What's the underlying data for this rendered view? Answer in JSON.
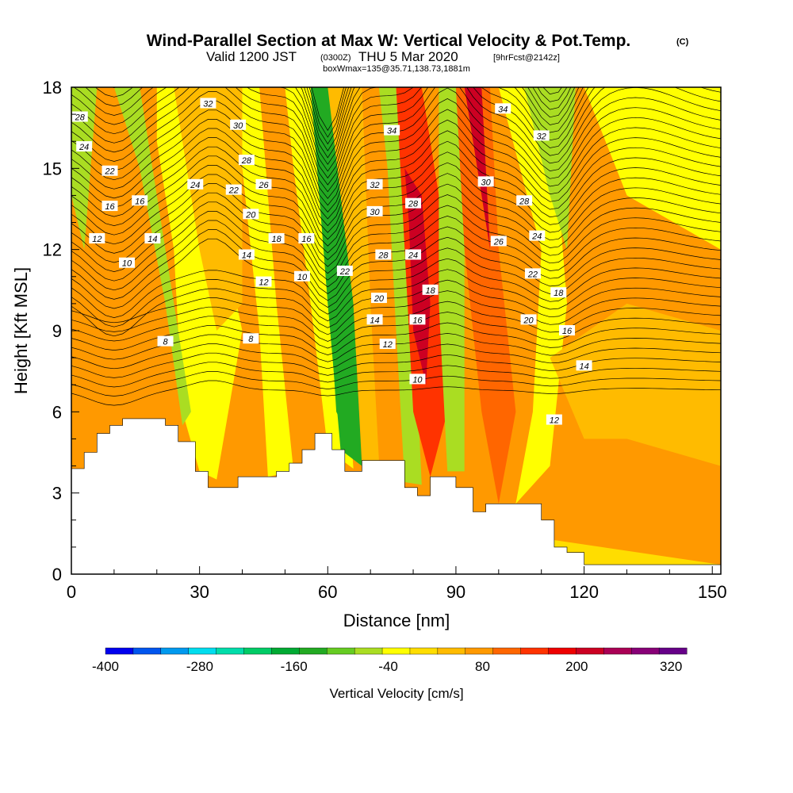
{
  "title": {
    "main": "Wind-Parallel Section at Max W: Vertical Velocity & Pot.Temp.",
    "main_suffix": "(C)",
    "line2_prefix": "Valid 1200 JST",
    "line2_small1": "(0300Z)",
    "line2_mid": "THU 5 Mar 2020",
    "line2_small2": "[9hrFcst@2142z]",
    "line3": "boxWmax=135@35.71,138.73,1881m"
  },
  "chart_data": {
    "type": "heatmap",
    "xlabel": "Distance [nm]",
    "ylabel": "Height [Kft MSL]",
    "xlim": [
      0,
      152
    ],
    "ylim": [
      0,
      18
    ],
    "x_ticks": [
      "0",
      "30",
      "60",
      "90",
      "120",
      "150"
    ],
    "x_tick_values": [
      0,
      30,
      60,
      90,
      120,
      150
    ],
    "y_ticks": [
      "0",
      "3",
      "6",
      "9",
      "12",
      "15",
      "18"
    ],
    "y_tick_values": [
      0,
      3,
      6,
      9,
      12,
      15,
      18
    ],
    "colorbar": {
      "label": "Vertical Velocity [cm/s]",
      "tick_labels": [
        "-400",
        "-280",
        "-160",
        "-40",
        "80",
        "200",
        "320"
      ],
      "tick_values": [
        -400,
        -280,
        -160,
        -40,
        80,
        200,
        320
      ],
      "range": [
        -400,
        340
      ],
      "colors": [
        "#0000ee",
        "#0055ee",
        "#0099ee",
        "#00ddee",
        "#00ddaa",
        "#00cc66",
        "#00aa33",
        "#22aa22",
        "#66cc22",
        "#aadd22",
        "#ffff00",
        "#ffdd00",
        "#ffbb00",
        "#ff9900",
        "#ff6600",
        "#ff3300",
        "#ee0000",
        "#cc0022",
        "#aa0055",
        "#880077",
        "#660088"
      ]
    },
    "terrain": [
      [
        0,
        3.9
      ],
      [
        3,
        3.9
      ],
      [
        3,
        4.5
      ],
      [
        6,
        4.5
      ],
      [
        6,
        5.2
      ],
      [
        9,
        5.2
      ],
      [
        9,
        5.5
      ],
      [
        12,
        5.5
      ],
      [
        12,
        5.75
      ],
      [
        22,
        5.75
      ],
      [
        22,
        5.5
      ],
      [
        25,
        5.5
      ],
      [
        25,
        4.9
      ],
      [
        29,
        4.9
      ],
      [
        29,
        3.8
      ],
      [
        32,
        3.8
      ],
      [
        32,
        3.2
      ],
      [
        39,
        3.2
      ],
      [
        39,
        3.6
      ],
      [
        48,
        3.6
      ],
      [
        48,
        3.8
      ],
      [
        51,
        3.8
      ],
      [
        51,
        4.1
      ],
      [
        54,
        4.1
      ],
      [
        54,
        4.6
      ],
      [
        57,
        4.6
      ],
      [
        57,
        5.2
      ],
      [
        61,
        5.2
      ],
      [
        61,
        4.6
      ],
      [
        64,
        4.6
      ],
      [
        64,
        3.8
      ],
      [
        68,
        3.8
      ],
      [
        68,
        4.2
      ],
      [
        78,
        4.2
      ],
      [
        78,
        3.2
      ],
      [
        81,
        3.2
      ],
      [
        81,
        2.9
      ],
      [
        84,
        2.9
      ],
      [
        84,
        3.6
      ],
      [
        90,
        3.6
      ],
      [
        90,
        3.2
      ],
      [
        94,
        3.2
      ],
      [
        94,
        2.3
      ],
      [
        97,
        2.3
      ],
      [
        97,
        2.6
      ],
      [
        110,
        2.6
      ],
      [
        110,
        2.0
      ],
      [
        113,
        2.0
      ],
      [
        113,
        1.0
      ],
      [
        116,
        1.0
      ],
      [
        116,
        0.8
      ],
      [
        120,
        0.8
      ],
      [
        120,
        0.35
      ],
      [
        152,
        0.35
      ]
    ],
    "velocity_bands": [
      {
        "path": [
          [
            0,
            18
          ],
          [
            0,
            3.9
          ],
          [
            152,
            0.35
          ],
          [
            152,
            18
          ]
        ],
        "value": 60
      },
      {
        "path": [
          [
            0,
            4.5
          ],
          [
            0,
            6.5
          ],
          [
            12,
            5.75
          ],
          [
            22,
            5.75
          ],
          [
            22,
            5.5
          ],
          [
            26,
            5.2
          ],
          [
            26,
            4.5
          ],
          [
            14,
            4.8
          ],
          [
            6,
            4.4
          ]
        ],
        "value": 80
      },
      {
        "path": [
          [
            0,
            18
          ],
          [
            0,
            14
          ],
          [
            3,
            12
          ],
          [
            6,
            18
          ]
        ],
        "value": -60
      },
      {
        "path": [
          [
            20,
            18
          ],
          [
            28,
            18
          ],
          [
            40,
            9
          ],
          [
            34,
            3.5
          ],
          [
            30,
            3.8
          ],
          [
            26,
            6
          ],
          [
            24,
            12
          ],
          [
            20,
            16
          ]
        ],
        "value": -40
      },
      {
        "path": [
          [
            10,
            18
          ],
          [
            16,
            18
          ],
          [
            28,
            6
          ],
          [
            26,
            5.5
          ],
          [
            22,
            10
          ],
          [
            16,
            15
          ]
        ],
        "value": -70
      },
      {
        "path": [
          [
            38,
            18
          ],
          [
            44,
            18
          ],
          [
            48,
            10
          ],
          [
            52,
            3.8
          ],
          [
            46,
            3.6
          ],
          [
            44,
            9
          ],
          [
            40,
            15
          ]
        ],
        "value": -40
      },
      {
        "path": [
          [
            24,
            18
          ],
          [
            40,
            18
          ],
          [
            40,
            10
          ],
          [
            34,
            9
          ],
          [
            30,
            12
          ]
        ],
        "value": 40
      },
      {
        "path": [
          [
            50,
            18
          ],
          [
            58,
            18
          ],
          [
            64,
            9
          ],
          [
            66,
            3.9
          ],
          [
            60,
            4.6
          ],
          [
            56,
            10
          ],
          [
            52,
            15
          ]
        ],
        "value": -40
      },
      {
        "path": [
          [
            56,
            18
          ],
          [
            62,
            18
          ],
          [
            66,
            10
          ],
          [
            68,
            4
          ],
          [
            63,
            4.6
          ],
          [
            60,
            10
          ]
        ],
        "value": -120
      },
      {
        "path": [
          [
            58,
            16
          ],
          [
            62,
            17
          ],
          [
            63,
            10
          ],
          [
            65,
            5
          ],
          [
            62,
            6
          ],
          [
            60,
            11
          ]
        ],
        "value": -150
      },
      {
        "path": [
          [
            60,
            18
          ],
          [
            68,
            18
          ],
          [
            70,
            10
          ],
          [
            72,
            4.2
          ],
          [
            68,
            4.2
          ],
          [
            66,
            10
          ]
        ],
        "value": 30
      },
      {
        "path": [
          [
            72,
            18
          ],
          [
            78,
            18
          ],
          [
            80,
            10
          ],
          [
            82,
            3.3
          ],
          [
            78,
            3.4
          ],
          [
            76,
            9
          ],
          [
            74,
            15
          ]
        ],
        "value": -60
      },
      {
        "path": [
          [
            76,
            18
          ],
          [
            82,
            18
          ],
          [
            88,
            12
          ],
          [
            88,
            6
          ],
          [
            84,
            3.6
          ],
          [
            80,
            6
          ],
          [
            78,
            12
          ]
        ],
        "value": 140
      },
      {
        "path": [
          [
            78,
            15
          ],
          [
            82,
            14
          ],
          [
            84,
            10
          ],
          [
            83,
            7
          ],
          [
            80,
            9
          ],
          [
            79,
            13
          ]
        ],
        "value": 220
      },
      {
        "path": [
          [
            86,
            18
          ],
          [
            92,
            18
          ],
          [
            92,
            10
          ],
          [
            92,
            3.8
          ],
          [
            88,
            3.8
          ],
          [
            86,
            10
          ]
        ],
        "value": -60
      },
      {
        "path": [
          [
            90,
            18
          ],
          [
            98,
            18
          ],
          [
            100,
            12
          ],
          [
            104,
            6
          ],
          [
            100,
            2.6
          ],
          [
            96,
            6
          ],
          [
            92,
            12
          ]
        ],
        "value": 120
      },
      {
        "path": [
          [
            92,
            18
          ],
          [
            96,
            18
          ],
          [
            98,
            12
          ],
          [
            96,
            14
          ],
          [
            94,
            16
          ]
        ],
        "value": 200
      },
      {
        "path": [
          [
            100,
            18
          ],
          [
            112,
            18
          ],
          [
            116,
            10
          ],
          [
            112,
            4
          ],
          [
            104,
            2.6
          ],
          [
            108,
            6
          ],
          [
            110,
            12
          ]
        ],
        "value": -40
      },
      {
        "path": [
          [
            106,
            18
          ],
          [
            118,
            18
          ],
          [
            116,
            12
          ],
          [
            112,
            14
          ]
        ],
        "value": -80
      },
      {
        "path": [
          [
            120,
            18
          ],
          [
            152,
            18
          ],
          [
            152,
            12
          ],
          [
            130,
            14
          ]
        ],
        "value": -20
      },
      {
        "path": [
          [
            112,
            8
          ],
          [
            130,
            10
          ],
          [
            152,
            9
          ],
          [
            152,
            4
          ],
          [
            130,
            5
          ],
          [
            120,
            5
          ]
        ],
        "value": 30
      }
    ],
    "contour_labels": [
      {
        "text": "32",
        "x": 32,
        "y": 17.4
      },
      {
        "text": "30",
        "x": 39,
        "y": 16.6
      },
      {
        "text": "28",
        "x": 41,
        "y": 15.3
      },
      {
        "text": "26",
        "x": 45,
        "y": 14.4
      },
      {
        "text": "24",
        "x": 29,
        "y": 14.4
      },
      {
        "text": "22",
        "x": 38,
        "y": 14.2
      },
      {
        "text": "20",
        "x": 42,
        "y": 13.3
      },
      {
        "text": "18",
        "x": 48,
        "y": 12.4
      },
      {
        "text": "16",
        "x": 55,
        "y": 12.4
      },
      {
        "text": "14",
        "x": 41,
        "y": 11.8
      },
      {
        "text": "12",
        "x": 45,
        "y": 10.8
      },
      {
        "text": "10",
        "x": 54,
        "y": 11
      },
      {
        "text": "8",
        "x": 42,
        "y": 8.7
      },
      {
        "text": "8",
        "x": 22,
        "y": 8.6
      },
      {
        "text": "28",
        "x": 2,
        "y": 16.9
      },
      {
        "text": "24",
        "x": 3,
        "y": 15.8
      },
      {
        "text": "22",
        "x": 9,
        "y": 14.9
      },
      {
        "text": "16",
        "x": 9,
        "y": 13.6
      },
      {
        "text": "16",
        "x": 16,
        "y": 13.8
      },
      {
        "text": "14",
        "x": 19,
        "y": 12.4
      },
      {
        "text": "12",
        "x": 6,
        "y": 12.4
      },
      {
        "text": "10",
        "x": 13,
        "y": 11.5
      },
      {
        "text": "34",
        "x": 75,
        "y": 16.4
      },
      {
        "text": "32",
        "x": 71,
        "y": 14.4
      },
      {
        "text": "30",
        "x": 71,
        "y": 13.4
      },
      {
        "text": "28",
        "x": 80,
        "y": 13.7
      },
      {
        "text": "28",
        "x": 73,
        "y": 11.8
      },
      {
        "text": "24",
        "x": 80,
        "y": 11.8
      },
      {
        "text": "22",
        "x": 64,
        "y": 11.2
      },
      {
        "text": "20",
        "x": 72,
        "y": 10.2
      },
      {
        "text": "18",
        "x": 84,
        "y": 10.5
      },
      {
        "text": "16",
        "x": 81,
        "y": 9.4
      },
      {
        "text": "14",
        "x": 71,
        "y": 9.4
      },
      {
        "text": "12",
        "x": 74,
        "y": 8.5
      },
      {
        "text": "10",
        "x": 81,
        "y": 7.2
      },
      {
        "text": "34",
        "x": 101,
        "y": 17.2
      },
      {
        "text": "32",
        "x": 110,
        "y": 16.2
      },
      {
        "text": "30",
        "x": 97,
        "y": 14.5
      },
      {
        "text": "28",
        "x": 106,
        "y": 13.8
      },
      {
        "text": "26",
        "x": 100,
        "y": 12.3
      },
      {
        "text": "24",
        "x": 109,
        "y": 12.5
      },
      {
        "text": "22",
        "x": 108,
        "y": 11.1
      },
      {
        "text": "18",
        "x": 114,
        "y": 10.4
      },
      {
        "text": "20",
        "x": 107,
        "y": 9.4
      },
      {
        "text": "16",
        "x": 116,
        "y": 9
      },
      {
        "text": "14",
        "x": 120,
        "y": 7.7
      },
      {
        "text": "12",
        "x": 113,
        "y": 5.7
      }
    ]
  }
}
